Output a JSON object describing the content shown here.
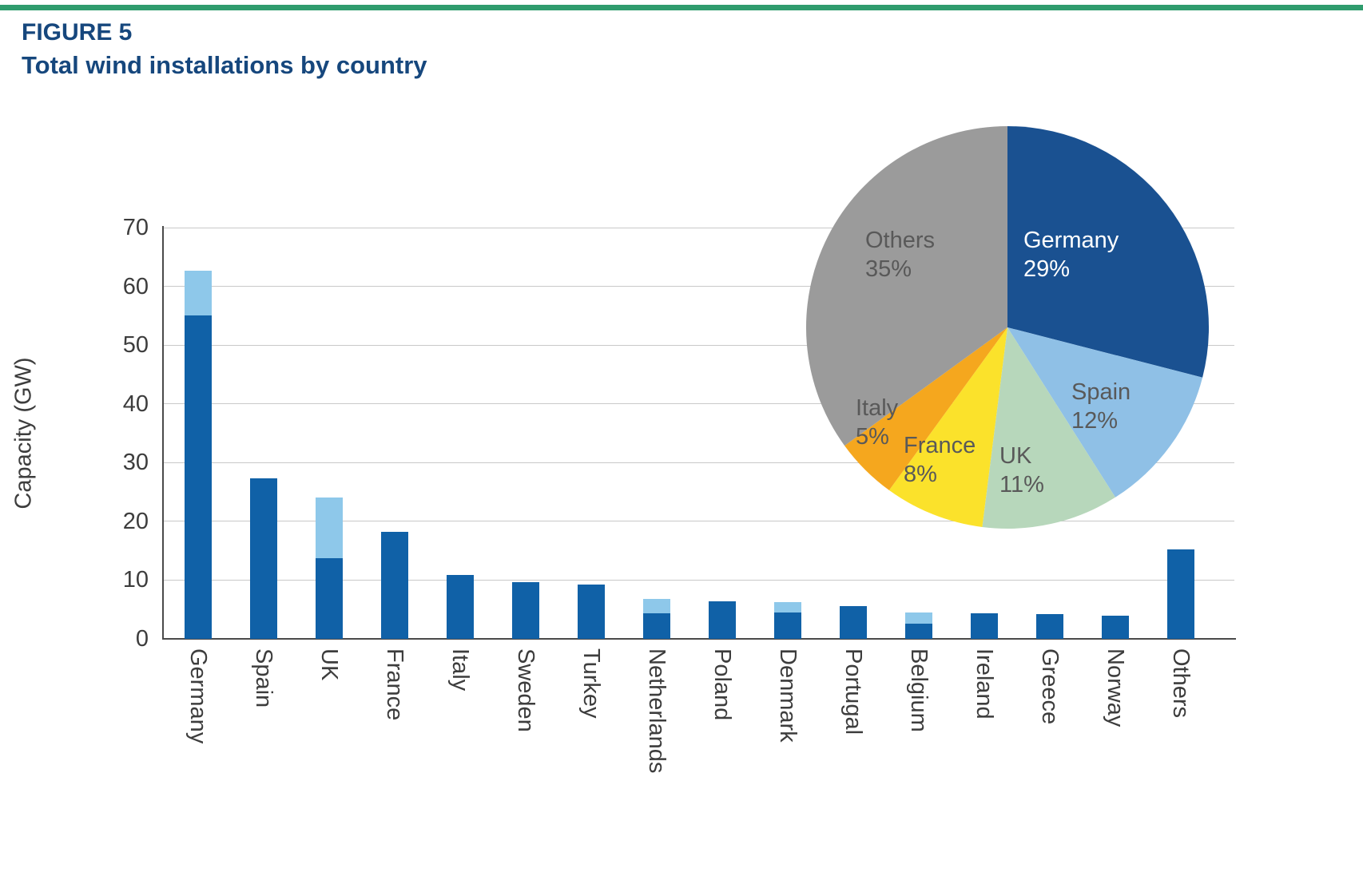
{
  "figure": {
    "label": "FIGURE 5",
    "title": "Total wind installations by country"
  },
  "colors": {
    "top_rule": "#2f9c6d",
    "title_text": "#16477d",
    "bar_dark": "#1061a7",
    "bar_light": "#8ec8ea",
    "axis_text": "#3d3d3d",
    "grid_line": "#c9c9c9"
  },
  "chart_data": [
    {
      "type": "bar",
      "stacked": true,
      "ylabel": "Capacity (GW)",
      "ylim": [
        0,
        70
      ],
      "yticks": [
        0,
        10,
        20,
        30,
        40,
        50,
        60,
        70
      ],
      "grid": true,
      "legend": "none",
      "categories": [
        "Germany",
        "Spain",
        "UK",
        "France",
        "Italy",
        "Sweden",
        "Turkey",
        "Netherlands",
        "Poland",
        "Denmark",
        "Portugal",
        "Belgium",
        "Ireland",
        "Greece",
        "Norway",
        "Others"
      ],
      "series": [
        {
          "name": "dark blue (bottom segment)",
          "color": "#1061a7",
          "values": [
            55.0,
            27.3,
            13.7,
            18.2,
            10.9,
            9.6,
            9.2,
            4.3,
            6.4,
            4.5,
            5.6,
            2.6,
            4.3,
            4.2,
            4.0,
            15.2
          ]
        },
        {
          "name": "light blue (top segment)",
          "color": "#8ec8ea",
          "values": [
            7.7,
            0,
            10.4,
            0,
            0,
            0,
            0,
            2.5,
            0,
            1.7,
            0,
            1.9,
            0,
            0,
            0,
            0
          ]
        }
      ]
    },
    {
      "type": "pie",
      "start_angle_deg": -90,
      "direction": "clockwise",
      "slices": [
        {
          "label": "Germany",
          "pct": "29%",
          "value": 29,
          "color": "#1a5191",
          "text_color": "#ffffff"
        },
        {
          "label": "Spain",
          "pct": "12%",
          "value": 12,
          "color": "#8fc0e6",
          "text_color": "#595959"
        },
        {
          "label": "UK",
          "pct": "11%",
          "value": 11,
          "color": "#b7d7bb",
          "text_color": "#595959"
        },
        {
          "label": "France",
          "pct": "8%",
          "value": 8,
          "color": "#fbe22b",
          "text_color": "#595959"
        },
        {
          "label": "Italy",
          "pct": "5%",
          "value": 5,
          "color": "#f5a71e",
          "text_color": "#595959"
        },
        {
          "label": "Others",
          "pct": "35%",
          "value": 35,
          "color": "#9b9b9b",
          "text_color": "#595959"
        }
      ]
    }
  ]
}
